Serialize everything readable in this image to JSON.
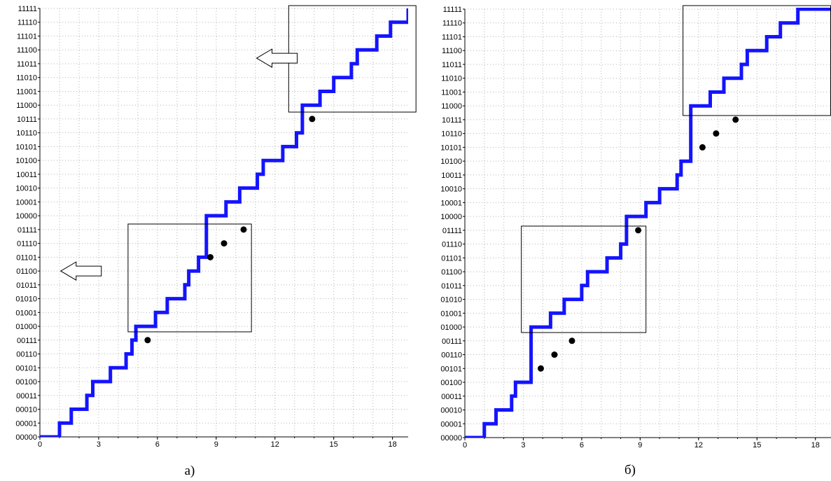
{
  "chart_data": [
    {
      "type": "line",
      "caption": "а)",
      "xlim": [
        0,
        18.8
      ],
      "ylim": [
        0,
        31
      ],
      "x_ticks": [
        "0",
        "3",
        "6",
        "9",
        "12",
        "15",
        "18"
      ],
      "y_ticks": [
        "00000",
        "00001",
        "00010",
        "00011",
        "00100",
        "00101",
        "00110",
        "00111",
        "01000",
        "01001",
        "01010",
        "01011",
        "01100",
        "01101",
        "01110",
        "01111",
        "10000",
        "10001",
        "10010",
        "10011",
        "10100",
        "10101",
        "10110",
        "10111",
        "11000",
        "11001",
        "11010",
        "11011",
        "11100",
        "11101",
        "11110",
        "11111"
      ],
      "grid": true,
      "step_line": {
        "color": "#1414ff",
        "points": [
          [
            0,
            0
          ],
          [
            1,
            0
          ],
          [
            1,
            1
          ],
          [
            1.6,
            1
          ],
          [
            1.6,
            2
          ],
          [
            2.4,
            2
          ],
          [
            2.4,
            3
          ],
          [
            2.7,
            3
          ],
          [
            2.7,
            4
          ],
          [
            3.6,
            4
          ],
          [
            3.6,
            5
          ],
          [
            4.4,
            5
          ],
          [
            4.4,
            6
          ],
          [
            4.7,
            6
          ],
          [
            4.7,
            7
          ],
          [
            4.9,
            7
          ],
          [
            4.9,
            8
          ],
          [
            5.9,
            8
          ],
          [
            5.9,
            9
          ],
          [
            6.5,
            9
          ],
          [
            6.5,
            10
          ],
          [
            7.4,
            10
          ],
          [
            7.4,
            11
          ],
          [
            7.6,
            11
          ],
          [
            7.6,
            12
          ],
          [
            8.1,
            12
          ],
          [
            8.1,
            13
          ],
          [
            8.5,
            13
          ],
          [
            8.5,
            16
          ],
          [
            9.5,
            16
          ],
          [
            9.5,
            17
          ],
          [
            10.2,
            17
          ],
          [
            10.2,
            18
          ],
          [
            11.1,
            18
          ],
          [
            11.1,
            19
          ],
          [
            11.4,
            19
          ],
          [
            11.4,
            20
          ],
          [
            12.4,
            20
          ],
          [
            12.4,
            21
          ],
          [
            13.1,
            21
          ],
          [
            13.1,
            22
          ],
          [
            13.4,
            22
          ],
          [
            13.4,
            24
          ],
          [
            14.3,
            24
          ],
          [
            14.3,
            25
          ],
          [
            15.0,
            25
          ],
          [
            15.0,
            26
          ],
          [
            15.9,
            26
          ],
          [
            15.9,
            27
          ],
          [
            16.2,
            27
          ],
          [
            16.2,
            28
          ],
          [
            17.2,
            28
          ],
          [
            17.2,
            29
          ],
          [
            17.9,
            29
          ],
          [
            17.9,
            30
          ],
          [
            18.8,
            30
          ],
          [
            18.8,
            31
          ]
        ]
      },
      "points": [
        [
          5.5,
          7
        ],
        [
          8.7,
          13
        ],
        [
          9.4,
          14
        ],
        [
          10.4,
          15
        ],
        [
          13.9,
          23
        ]
      ],
      "boxes": [
        {
          "x0": 4.5,
          "x1": 10.8,
          "y0": 7.6,
          "y1": 15.4
        },
        {
          "x0": 12.7,
          "x1": 19.2,
          "y0": 23.5,
          "y1": 31.5
        }
      ],
      "arrows": [
        {
          "x": 2.1,
          "y": 12
        },
        {
          "x": 12.1,
          "y": 27.4
        }
      ]
    },
    {
      "type": "line",
      "caption": "б)",
      "xlim": [
        0,
        18.8
      ],
      "ylim": [
        0,
        31
      ],
      "x_ticks": [
        "0",
        "3",
        "6",
        "9",
        "12",
        "15",
        "18"
      ],
      "y_ticks": [
        "00000",
        "00001",
        "00010",
        "00011",
        "00100",
        "00101",
        "00110",
        "00111",
        "01000",
        "01001",
        "01010",
        "01011",
        "01100",
        "01101",
        "01110",
        "01111",
        "10000",
        "10001",
        "10010",
        "10011",
        "10100",
        "10101",
        "10110",
        "10111",
        "11000",
        "11001",
        "11010",
        "11011",
        "11100",
        "11101",
        "11110",
        "11111"
      ],
      "grid": true,
      "step_line": {
        "color": "#1414ff",
        "points": [
          [
            0,
            0
          ],
          [
            1,
            0
          ],
          [
            1,
            1
          ],
          [
            1.6,
            1
          ],
          [
            1.6,
            2
          ],
          [
            2.4,
            2
          ],
          [
            2.4,
            3
          ],
          [
            2.6,
            3
          ],
          [
            2.6,
            4
          ],
          [
            3.4,
            4
          ],
          [
            3.4,
            8
          ],
          [
            4.4,
            8
          ],
          [
            4.4,
            9
          ],
          [
            5.1,
            9
          ],
          [
            5.1,
            10
          ],
          [
            6.0,
            10
          ],
          [
            6.0,
            11
          ],
          [
            6.3,
            11
          ],
          [
            6.3,
            12
          ],
          [
            7.3,
            12
          ],
          [
            7.3,
            13
          ],
          [
            8.0,
            13
          ],
          [
            8.0,
            14
          ],
          [
            8.3,
            14
          ],
          [
            8.3,
            16
          ],
          [
            9.3,
            16
          ],
          [
            9.3,
            17
          ],
          [
            10.0,
            17
          ],
          [
            10.0,
            18
          ],
          [
            10.9,
            18
          ],
          [
            10.9,
            19
          ],
          [
            11.1,
            19
          ],
          [
            11.1,
            20
          ],
          [
            11.6,
            20
          ],
          [
            11.6,
            24
          ],
          [
            12.6,
            24
          ],
          [
            12.6,
            25
          ],
          [
            13.3,
            25
          ],
          [
            13.3,
            26
          ],
          [
            14.2,
            26
          ],
          [
            14.2,
            27
          ],
          [
            14.5,
            27
          ],
          [
            14.5,
            28
          ],
          [
            15.5,
            28
          ],
          [
            15.5,
            29
          ],
          [
            16.2,
            29
          ],
          [
            16.2,
            30
          ],
          [
            17.1,
            30
          ],
          [
            17.1,
            31
          ],
          [
            18.8,
            31
          ]
        ]
      },
      "points": [
        [
          3.9,
          5
        ],
        [
          4.6,
          6
        ],
        [
          5.5,
          7
        ],
        [
          8.9,
          15
        ],
        [
          12.2,
          21
        ],
        [
          12.9,
          22
        ],
        [
          13.9,
          23
        ]
      ],
      "boxes": [
        {
          "x0": 2.9,
          "x1": 9.3,
          "y0": 7.6,
          "y1": 15.3
        },
        {
          "x0": 11.2,
          "x1": 19.5,
          "y0": 23.3,
          "y1": 31.7
        }
      ],
      "arrows": []
    }
  ]
}
